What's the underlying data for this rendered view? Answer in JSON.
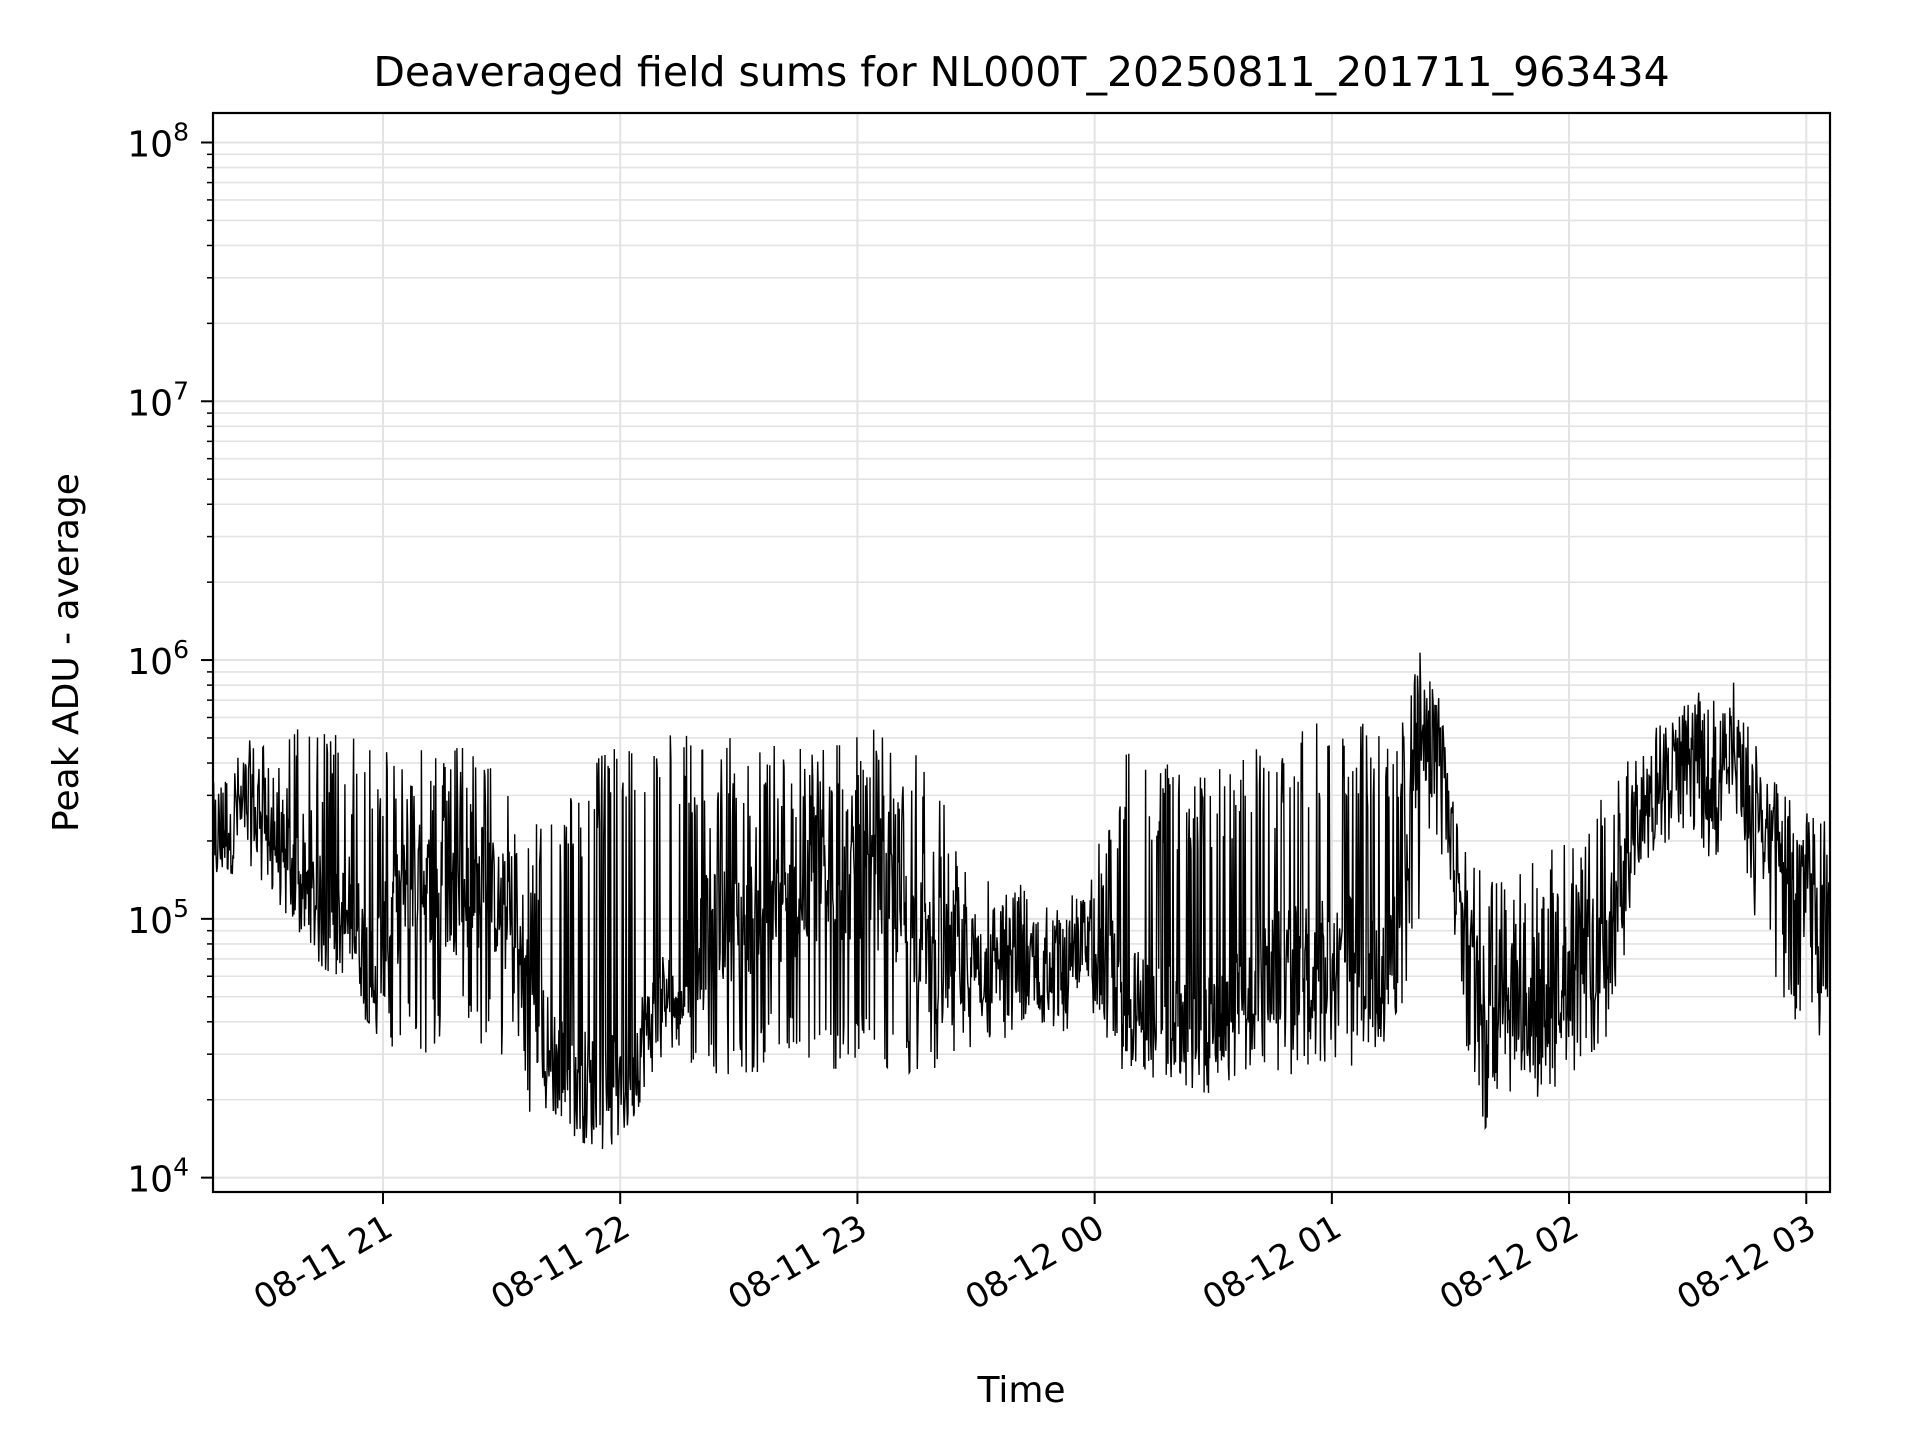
{
  "chart_data": {
    "type": "line",
    "title": "Deaveraged field sums for NL000T_20250811_201711_963434",
    "xlabel": "Time",
    "ylabel": "Peak ADU - average",
    "yscale": "log",
    "ylim": [
      8800,
      130000000
    ],
    "xlim": [
      "2025-08-11 20:17:00",
      "2025-08-12 03:06:00"
    ],
    "grid": true,
    "line_color": "#000000",
    "grid_color": "#e3e3e3",
    "x_ticks": [
      {
        "time": "2025-08-11 21:00",
        "label": "08-11 21"
      },
      {
        "time": "2025-08-11 22:00",
        "label": "08-11 22"
      },
      {
        "time": "2025-08-11 23:00",
        "label": "08-11 23"
      },
      {
        "time": "2025-08-12 00:00",
        "label": "08-12 00"
      },
      {
        "time": "2025-08-12 01:00",
        "label": "08-12 01"
      },
      {
        "time": "2025-08-12 02:00",
        "label": "08-12 02"
      },
      {
        "time": "2025-08-12 03:00",
        "label": "08-12 03"
      }
    ],
    "y_ticks": [
      {
        "value": 10000,
        "base": "10",
        "exp": "4"
      },
      {
        "value": 100000,
        "base": "10",
        "exp": "5"
      },
      {
        "value": 1000000,
        "base": "10",
        "exp": "6"
      },
      {
        "value": 10000000,
        "base": "10",
        "exp": "7"
      },
      {
        "value": 100000000,
        "base": "10",
        "exp": "8"
      }
    ],
    "series": [
      {
        "x": [
          "2025-08-11 20:17",
          "2025-08-11 20:22",
          "2025-08-11 20:27",
          "2025-08-11 20:32",
          "2025-08-11 20:37",
          "2025-08-11 20:42",
          "2025-08-11 20:47",
          "2025-08-11 20:52",
          "2025-08-11 20:57",
          "2025-08-11 21:07",
          "2025-08-11 21:17",
          "2025-08-11 21:27",
          "2025-08-11 21:32",
          "2025-08-11 21:37",
          "2025-08-11 21:42",
          "2025-08-11 21:47",
          "2025-08-11 21:52",
          "2025-08-11 21:57",
          "2025-08-11 22:02",
          "2025-08-11 22:07",
          "2025-08-11 22:12",
          "2025-08-11 22:22",
          "2025-08-11 22:32",
          "2025-08-11 22:42",
          "2025-08-11 22:52",
          "2025-08-11 23:02",
          "2025-08-11 23:12",
          "2025-08-11 23:22",
          "2025-08-11 23:32",
          "2025-08-11 23:42",
          "2025-08-11 23:52",
          "2025-08-11 23:57",
          "2025-08-12 00:07",
          "2025-08-12 00:17",
          "2025-08-12 00:27",
          "2025-08-12 00:37",
          "2025-08-12 00:47",
          "2025-08-12 00:57",
          "2025-08-12 01:07",
          "2025-08-12 01:12",
          "2025-08-12 01:17",
          "2025-08-12 01:22",
          "2025-08-12 01:27",
          "2025-08-12 01:32",
          "2025-08-12 01:37",
          "2025-08-12 01:42",
          "2025-08-12 01:52",
          "2025-08-12 02:02",
          "2025-08-12 02:07",
          "2025-08-12 02:12",
          "2025-08-12 02:17",
          "2025-08-12 02:22",
          "2025-08-12 02:27",
          "2025-08-12 02:32",
          "2025-08-12 02:37",
          "2025-08-12 02:42",
          "2025-08-12 02:47",
          "2025-08-12 02:52",
          "2025-08-12 02:57",
          "2025-08-12 03:02",
          "2025-08-12 03:06"
        ],
        "y": [
          200000,
          250000,
          300000,
          220000,
          140000,
          120000,
          90000,
          110000,
          60000,
          150000,
          120000,
          130000,
          90000,
          60000,
          30000,
          25000,
          22000,
          21000,
          24000,
          38000,
          50000,
          90000,
          100000,
          110000,
          130000,
          140000,
          100000,
          70000,
          70000,
          80000,
          60000,
          100000,
          50000,
          40000,
          35000,
          45000,
          65000,
          70000,
          75000,
          55000,
          120000,
          450000,
          500000,
          150000,
          50000,
          55000,
          45000,
          60000,
          80000,
          100000,
          250000,
          320000,
          380000,
          420000,
          350000,
          450000,
          300000,
          200000,
          180000,
          80000,
          90000
        ],
        "upper_envelope": [
          350000,
          450000,
          500000,
          520000,
          550000,
          580000,
          540000,
          500000,
          500000,
          500000,
          500000,
          400000,
          300000,
          250000,
          250000,
          300000,
          400000,
          450000,
          500000,
          550000,
          520000,
          500000,
          500000,
          500000,
          500000,
          550000,
          500000,
          300000,
          150000,
          150000,
          130000,
          110000,
          500000,
          400000,
          400000,
          450000,
          500000,
          600000,
          600000,
          580000,
          600000,
          1100000,
          700000,
          200000,
          180000,
          150000,
          180000,
          200000,
          300000,
          350000,
          500000,
          550000,
          600000,
          1000000,
          700000,
          850000,
          500000,
          350000,
          300000,
          280000,
          300000
        ],
        "lower_envelope": [
          130000,
          150000,
          160000,
          120000,
          90000,
          80000,
          60000,
          70000,
          30000,
          30000,
          30000,
          30000,
          25000,
          18000,
          16000,
          15000,
          15000,
          14000,
          15000,
          28000,
          30000,
          25000,
          25000,
          25000,
          25000,
          25000,
          25000,
          25000,
          30000,
          35000,
          30000,
          50000,
          25000,
          22000,
          20000,
          25000,
          25000,
          25000,
          25000,
          30000,
          35000,
          100000,
          200000,
          60000,
          13000,
          20000,
          20000,
          25000,
          30000,
          40000,
          150000,
          180000,
          200000,
          220000,
          150000,
          250000,
          100000,
          60000,
          40000,
          30000,
          40000
        ]
      }
    ]
  }
}
